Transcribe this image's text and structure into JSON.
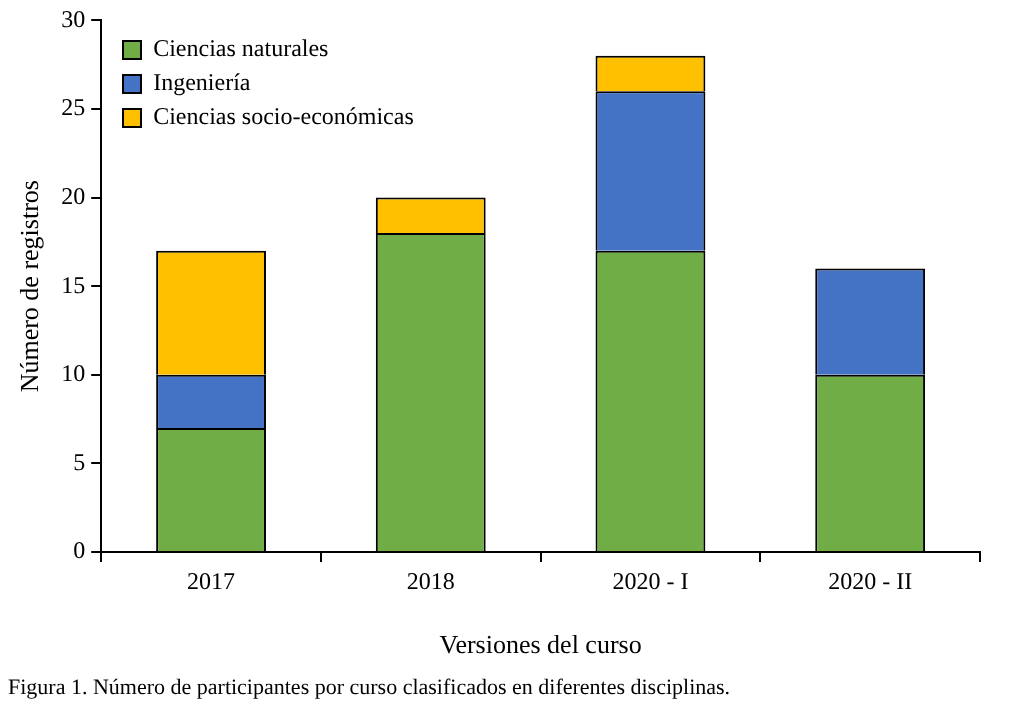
{
  "chart_data": {
    "type": "bar",
    "stacked": true,
    "xlabel": "Versiones del curso",
    "ylabel": "Número de registros",
    "categories": [
      "2017",
      "2018",
      "2020 - I",
      "2020 - II"
    ],
    "series": [
      {
        "name": "Ciencias naturales",
        "color": "#70ad47",
        "values": [
          7,
          18,
          17,
          10
        ]
      },
      {
        "name": "Ingeniería",
        "color": "#4472c4",
        "values": [
          3,
          0,
          9,
          6
        ]
      },
      {
        "name": "Ciencias socio-económicas",
        "color": "#ffc000",
        "values": [
          7,
          2,
          2,
          0
        ]
      }
    ],
    "ylim": [
      0,
      30
    ],
    "yticks": [
      0,
      5,
      10,
      15,
      20,
      25,
      30
    ],
    "grid": false,
    "legend": "top left",
    "annotations": [
      "Figura 1. Número de participantes por curso clasificados en diferentes disciplinas."
    ]
  }
}
